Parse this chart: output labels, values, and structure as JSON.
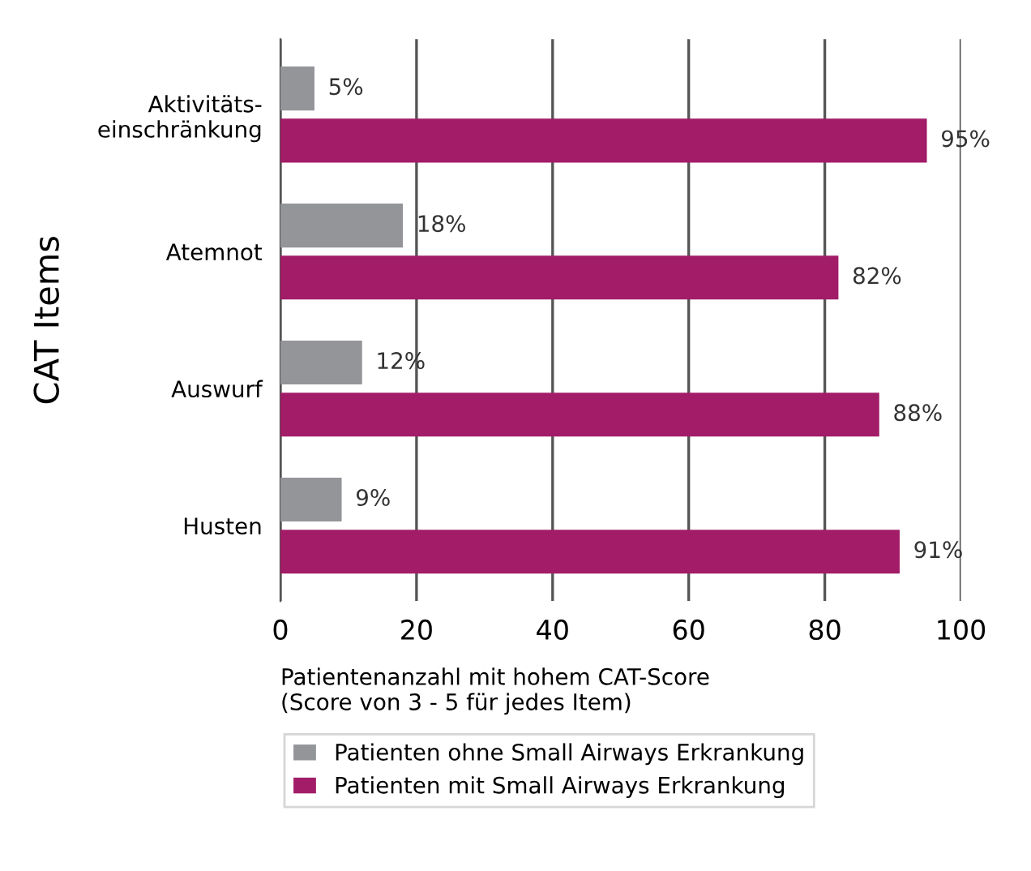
{
  "chart_data": {
    "type": "bar",
    "orientation": "horizontal",
    "categories": [
      "Aktivitäts-\neinschränkung",
      "Atemnot",
      "Auswurf",
      "Husten"
    ],
    "ylabel": "CAT Items",
    "xlabel": "Patientenanzahl mit hohem CAT-Score\n(Score von 3 - 5 für jedes Item)",
    "series": [
      {
        "name": "Patienten ohne Small Airways Erkrankung",
        "color": "#939598",
        "values": [
          5,
          18,
          12,
          9
        ],
        "value_labels": [
          "5%",
          "18%",
          "12%",
          "9%"
        ]
      },
      {
        "name": "Patienten mit Small Airways Erkrankung",
        "color": "#a21c68",
        "values": [
          95,
          82,
          88,
          91
        ],
        "value_labels": [
          "95%",
          "82%",
          "88%",
          "91%"
        ]
      }
    ],
    "xlim": [
      0,
      100
    ],
    "xticks": [
      0,
      20,
      40,
      60,
      80,
      100
    ],
    "grid": "x",
    "legend": "bottom"
  }
}
